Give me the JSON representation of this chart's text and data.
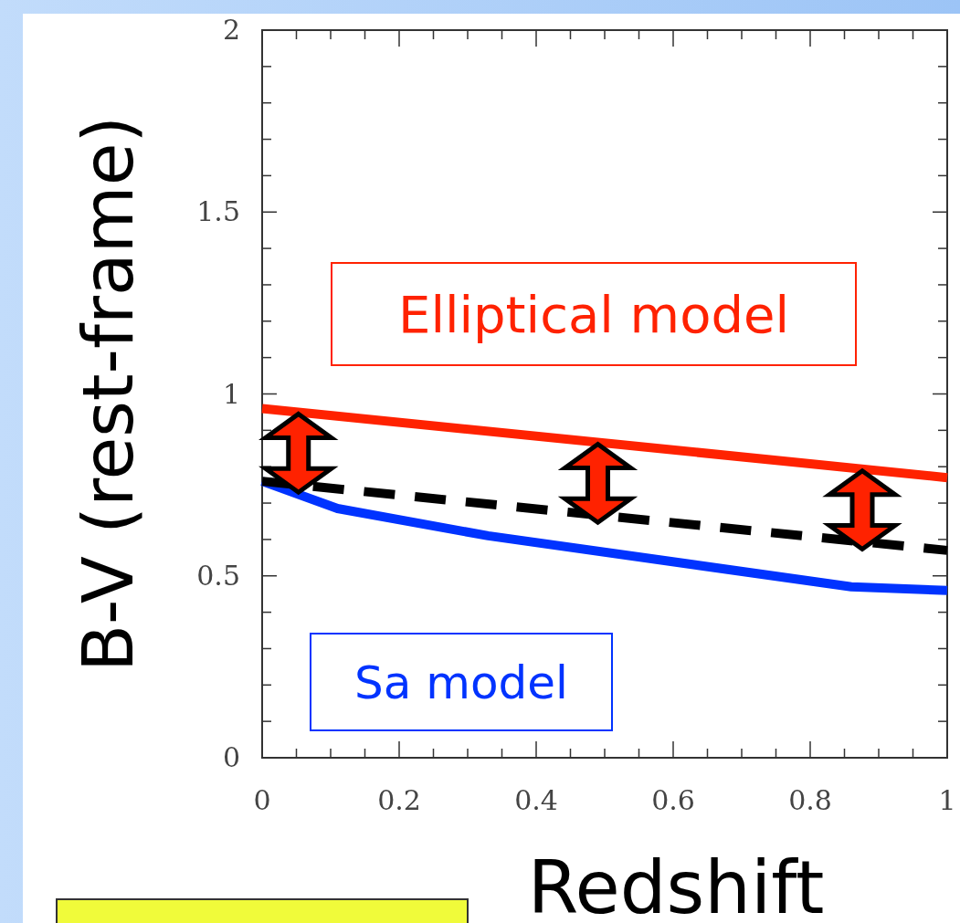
{
  "chart_data": {
    "type": "line",
    "xlabel": "Redshift",
    "ylabel": "B-V (rest-frame)",
    "xlim": [
      0,
      1
    ],
    "ylim": [
      0,
      2
    ],
    "xticks": [
      0,
      {
        "value": 0.05,
        "label": null
      },
      {
        "value": 0.1,
        "label": null
      },
      {
        "value": 0.15,
        "label": null
      },
      0.2,
      {
        "value": 0.25,
        "label": null
      },
      {
        "value": 0.3,
        "label": null
      },
      {
        "value": 0.35,
        "label": null
      },
      0.4,
      {
        "value": 0.45,
        "label": null
      },
      {
        "value": 0.5,
        "label": null
      },
      {
        "value": 0.55,
        "label": null
      },
      0.6,
      {
        "value": 0.65,
        "label": null
      },
      {
        "value": 0.7,
        "label": null
      },
      {
        "value": 0.75,
        "label": null
      },
      0.8,
      {
        "value": 0.85,
        "label": null
      },
      {
        "value": 0.9,
        "label": null
      },
      {
        "value": 0.95,
        "label": null
      },
      1
    ],
    "yticks": [
      0,
      {
        "value": 0.1,
        "label": null
      },
      {
        "value": 0.2,
        "label": null
      },
      {
        "value": 0.3,
        "label": null
      },
      {
        "value": 0.4,
        "label": null
      },
      0.5,
      {
        "value": 0.6,
        "label": null
      },
      {
        "value": 0.7,
        "label": null
      },
      {
        "value": 0.8,
        "label": null
      },
      {
        "value": 0.9,
        "label": null
      },
      1,
      {
        "value": 1.1,
        "label": null
      },
      {
        "value": 1.2,
        "label": null
      },
      {
        "value": 1.3,
        "label": null
      },
      {
        "value": 1.4,
        "label": null
      },
      1.5,
      {
        "value": 1.6,
        "label": null
      },
      {
        "value": 1.7,
        "label": null
      },
      {
        "value": 1.8,
        "label": null
      },
      {
        "value": 1.9,
        "label": null
      },
      2
    ],
    "grid": false,
    "marker": "none",
    "series": [
      {
        "name": "Elliptical model",
        "color": "#ff2200",
        "line_style": "solid",
        "x": [
          0,
          1
        ],
        "values": [
          0.96,
          0.77
        ]
      },
      {
        "name": "Sa model",
        "color": "#0033ff",
        "line_style": "solid",
        "x": [
          0,
          0.11,
          0.33,
          0.86,
          1
        ],
        "values": [
          0.76,
          0.685,
          0.61,
          0.47,
          0.46
        ]
      },
      {
        "color": "#000000",
        "line_style": "dashed",
        "x": [
          0,
          1
        ],
        "values": [
          0.76,
          0.57
        ]
      }
    ]
  }
}
